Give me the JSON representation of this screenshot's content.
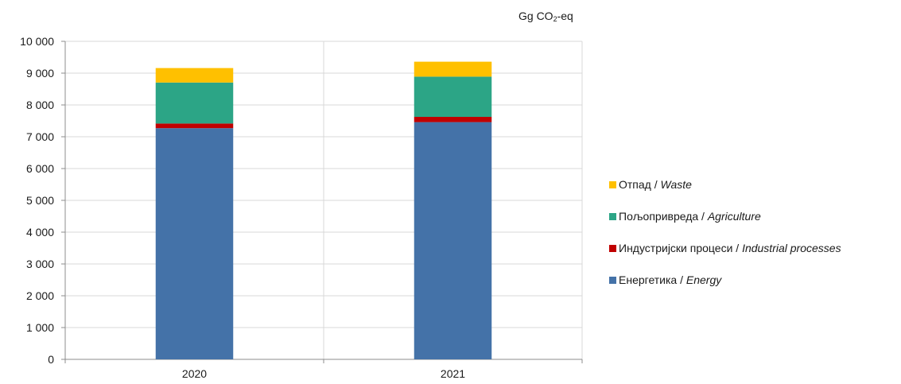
{
  "chart_data": {
    "type": "bar",
    "stacked": true,
    "unit_label": {
      "prefix": "Gg CO",
      "subscript": "2",
      "suffix": "-eq"
    },
    "categories": [
      "2020",
      "2021"
    ],
    "series": [
      {
        "name": "Енергетика",
        "name_en": "Energy",
        "color": "#4472a8",
        "values": [
          7270,
          7460
        ]
      },
      {
        "name": "Индустријски процеси",
        "name_en": "Industrial processes",
        "color": "#c00000",
        "values": [
          145,
          165
        ]
      },
      {
        "name": "Пољопривреда",
        "name_en": "Agriculture",
        "color": "#2ca586",
        "values": [
          1290,
          1265
        ]
      },
      {
        "name": "Отпад",
        "name_en": "Waste",
        "color": "#ffc000",
        "values": [
          455,
          470
        ]
      }
    ],
    "ylim": [
      0,
      10000
    ],
    "y_ticks": [
      0,
      1000,
      2000,
      3000,
      4000,
      5000,
      6000,
      7000,
      8000,
      9000,
      10000
    ],
    "y_tick_labels": [
      "0",
      "1 000",
      "2 000",
      "3 000",
      "4 000",
      "5 000",
      "6 000",
      "7 000",
      "8 000",
      "9 000",
      "10 000"
    ],
    "grid": true,
    "legend_position": "right",
    "legend_order": [
      3,
      2,
      1,
      0
    ]
  }
}
